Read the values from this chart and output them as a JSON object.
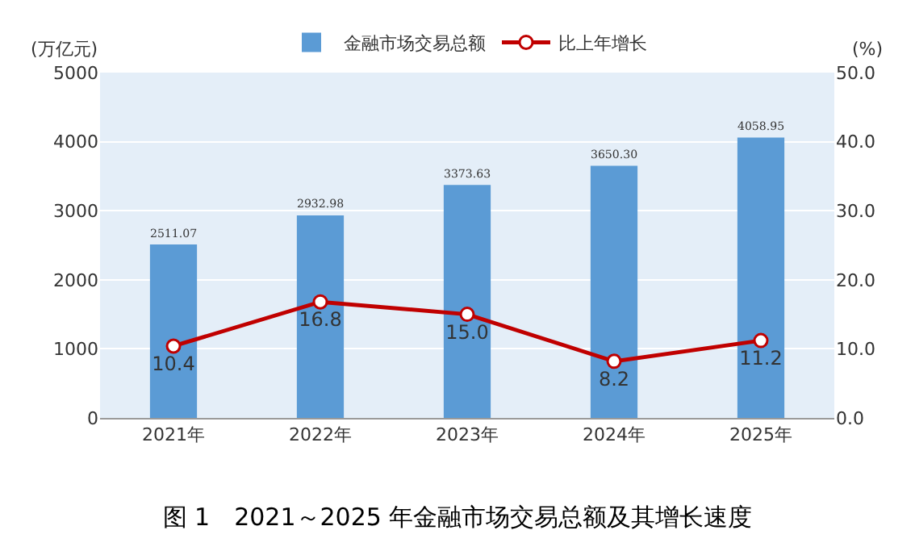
{
  "chart_data": {
    "type": "bar",
    "title": "图 1　2021～2025 年金融市场交易总额及其增长速度",
    "ylabel": "(万亿元)",
    "y2label": "(%)",
    "categories": [
      "2021年",
      "2022年",
      "2023年",
      "2024年",
      "2025年"
    ],
    "series": [
      {
        "name": "金融市场交易总额",
        "color": "#5b9bd5",
        "values": [
          2511.07,
          2932.98,
          3373.63,
          3650.3,
          4058.95
        ],
        "value_labels": [
          "2511.07",
          "2932.98",
          "3373.63",
          "3650.30",
          "4058.95"
        ]
      },
      {
        "name": "比上年增长",
        "type": "line",
        "axis": "y2",
        "color": "#c00000",
        "marker": "circle",
        "values": [
          10.4,
          16.8,
          15.0,
          8.2,
          11.2
        ],
        "value_labels": [
          "10.4",
          "16.8",
          "15.0",
          "8.2",
          "11.2"
        ]
      }
    ],
    "ylim": [
      0,
      5000
    ],
    "yticks": [
      0,
      1000,
      2000,
      3000,
      4000,
      5000
    ],
    "y2lim": [
      0,
      50
    ],
    "y2ticks": [
      {
        "value": 0,
        "label": "0.0"
      },
      {
        "value": 10,
        "label": "10.0"
      },
      {
        "value": 20,
        "label": "20.0"
      },
      {
        "value": 30,
        "label": "30.0"
      },
      {
        "value": 40,
        "label": "40.0"
      },
      {
        "value": 50,
        "label": "50.0"
      }
    ],
    "grid": "y",
    "legend": "top"
  }
}
